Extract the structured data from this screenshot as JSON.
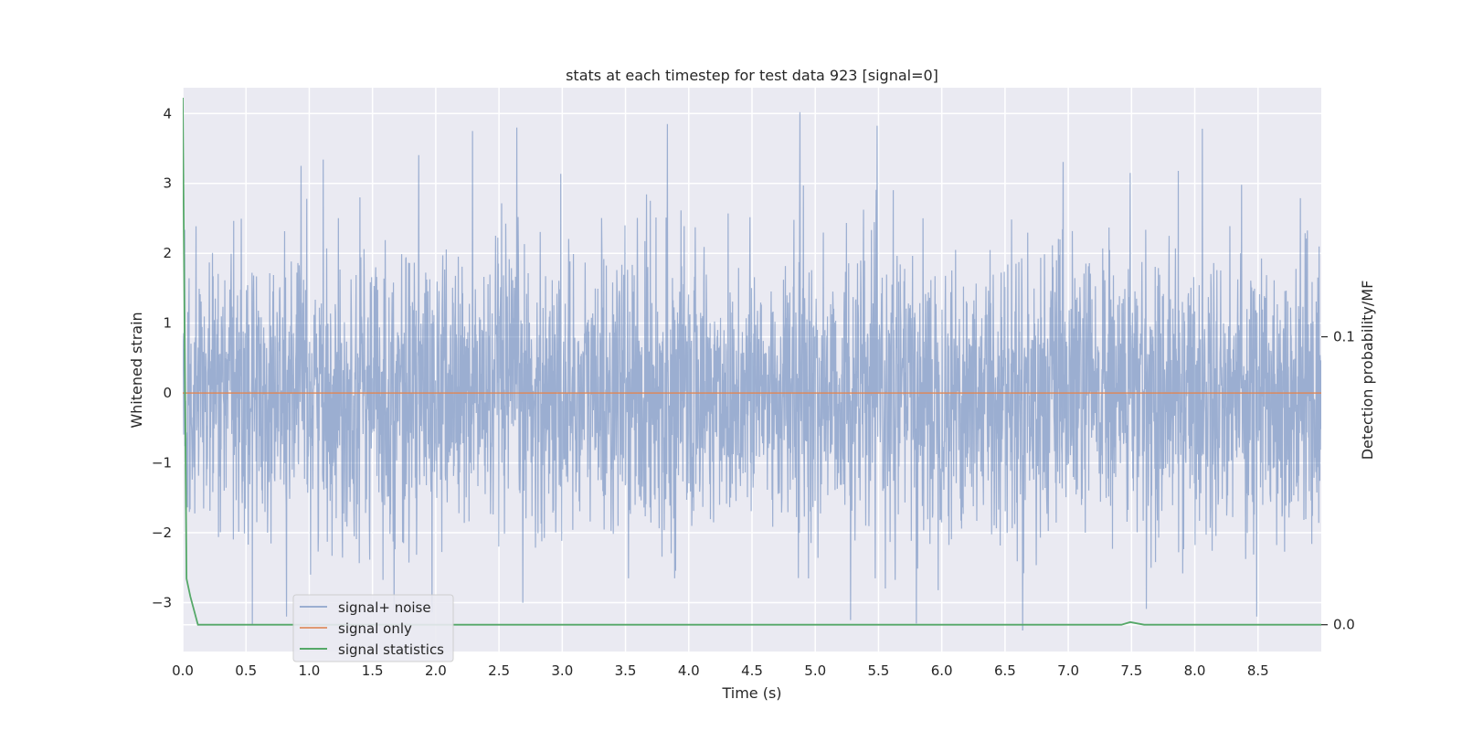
{
  "chart_data": {
    "type": "line",
    "title": "stats at each timestep for test data 923 [signal=0]",
    "xlabel": "Time (s)",
    "ylabel": "Whitened strain",
    "ylabel_right": "Detection probability/MF",
    "xlim": [
      0.0,
      9.0
    ],
    "ylim": [
      -3.7,
      4.37
    ],
    "ylim_right": [
      -0.0093,
      0.1865
    ],
    "x_ticks": [
      "0.0",
      "0.5",
      "1.0",
      "1.5",
      "2.0",
      "2.5",
      "3.0",
      "3.5",
      "4.0",
      "4.5",
      "5.0",
      "5.5",
      "6.0",
      "6.5",
      "7.0",
      "7.5",
      "8.0",
      "8.5"
    ],
    "y_ticks": [
      "−3",
      "−2",
      "−1",
      "0",
      "1",
      "2",
      "3",
      "4"
    ],
    "y_ticks_right": [
      "0.0",
      "0.1"
    ],
    "grid": true,
    "legend_position": "lower-left",
    "legend": [
      "signal+ noise",
      "signal only",
      "signal statistics"
    ],
    "series": [
      {
        "name": "signal+ noise",
        "axis": "left",
        "color": "#4c72b0",
        "kind": "noise",
        "duration": 9.0,
        "std": 1.0,
        "peaks": [
          {
            "x": 2.29,
            "y": 3.75
          },
          {
            "x": 2.64,
            "y": 3.8
          },
          {
            "x": 3.83,
            "y": 3.85
          },
          {
            "x": 4.88,
            "y": 4.02
          },
          {
            "x": 5.28,
            "y": 3.08
          },
          {
            "x": 7.49,
            "y": 3.15
          },
          {
            "x": 8.37,
            "y": 2.98
          },
          {
            "x": 5.28,
            "y": -3.25
          },
          {
            "x": 5.8,
            "y": -3.3
          },
          {
            "x": 0.82,
            "y": -3.2
          },
          {
            "x": 8.49,
            "y": -3.2
          },
          {
            "x": 1.67,
            "y": -3.1
          },
          {
            "x": 0.98,
            "y": 2.78
          },
          {
            "x": 1.4,
            "y": 2.8
          }
        ]
      },
      {
        "name": "signal only",
        "axis": "left",
        "color": "#dd8452",
        "x": [
          0.0,
          9.0
        ],
        "y": [
          0.0,
          0.0
        ]
      },
      {
        "name": "signal statistics",
        "axis": "right",
        "color": "#55a868",
        "x": [
          0.0,
          0.03,
          0.06,
          0.12,
          0.5,
          1.0,
          2.0,
          3.0,
          4.0,
          5.0,
          6.0,
          7.0,
          7.42,
          7.49,
          7.55,
          7.6,
          8.0,
          9.0
        ],
        "y": [
          0.183,
          0.016,
          0.0098,
          0.0,
          0.0,
          0.0,
          0.0,
          0.0,
          0.0,
          0.0,
          0.0,
          0.0,
          0.0,
          0.0009,
          0.0004,
          0.0,
          0.0,
          0.0
        ]
      }
    ]
  }
}
